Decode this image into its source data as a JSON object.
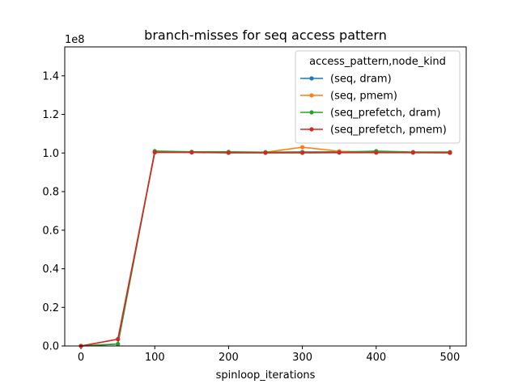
{
  "chart_data": {
    "type": "line",
    "title": "branch-misses for seq access pattern",
    "xlabel": "spinloop_iterations",
    "ylabel": "",
    "y_offset_label": "1e8",
    "y_scale": 100000000,
    "xlim": [
      -22,
      522
    ],
    "ylim": [
      0,
      155000000
    ],
    "x_ticks": [
      0,
      100,
      200,
      300,
      400,
      500
    ],
    "x_tick_labels": [
      "0",
      "100",
      "200",
      "300",
      "400",
      "500"
    ],
    "y_ticks": [
      0,
      20000000,
      40000000,
      60000000,
      80000000,
      100000000,
      120000000,
      140000000
    ],
    "y_tick_labels": [
      "0.0",
      "0.2",
      "0.4",
      "0.6",
      "0.8",
      "1.0",
      "1.2",
      "1.4"
    ],
    "grid": false,
    "legend": {
      "title": "access_pattern,node_kind",
      "placement": "upper right"
    },
    "x": [
      0,
      50,
      100,
      150,
      200,
      250,
      300,
      350,
      400,
      450,
      500
    ],
    "series": [
      {
        "name": "(seq, dram)",
        "color": "#1f77b4",
        "values": [
          0,
          1000000,
          100800000,
          100500000,
          100400000,
          100400000,
          100500000,
          100600000,
          100500000,
          100400000,
          100300000
        ]
      },
      {
        "name": "(seq, pmem)",
        "color": "#ff7f0e",
        "values": [
          0,
          3500000,
          100400000,
          100400000,
          100300000,
          100400000,
          103000000,
          100900000,
          100500000,
          100300000,
          100200000
        ]
      },
      {
        "name": "(seq_prefetch, dram)",
        "color": "#2ca02c",
        "values": [
          0,
          1000000,
          101000000,
          100600000,
          100600000,
          100400000,
          100500000,
          100400000,
          101000000,
          100500000,
          100500000
        ]
      },
      {
        "name": "(seq_prefetch, pmem)",
        "color": "#d62728",
        "values": [
          0,
          3500000,
          100300000,
          100300000,
          100100000,
          100100000,
          100100000,
          100200000,
          100200000,
          100200000,
          100100000
        ]
      }
    ]
  }
}
